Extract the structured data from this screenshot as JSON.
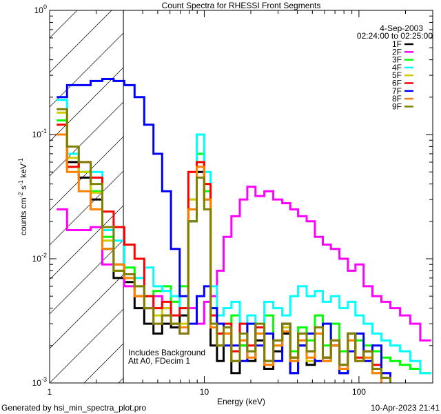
{
  "chart_data": {
    "type": "line",
    "title": "Count Spectra for RHESSI Front Segments",
    "xlabel": "Energy (keV)",
    "ylabel": "counts cm-2 s-1 keV-1",
    "xscale": "log",
    "yscale": "log",
    "xlim": [
      1,
      300
    ],
    "ylim": [
      0.001,
      1
    ],
    "x_tick_labels": [
      {
        "value": 1,
        "label": "1"
      },
      {
        "value": 10,
        "label": "10"
      },
      {
        "value": 100,
        "label": "100"
      }
    ],
    "y_tick_labels": [
      {
        "value": 1,
        "base": "10",
        "exp": "0"
      },
      {
        "value": 0.1,
        "base": "10",
        "exp": "-1"
      },
      {
        "value": 0.01,
        "base": "10",
        "exp": "-2"
      },
      {
        "value": 0.001,
        "base": "10",
        "exp": "-3"
      }
    ],
    "hatched_region_keV": [
      1,
      3
    ],
    "date": "4-Sep-2003",
    "time_range": "02:24:00 to 02:25:00",
    "annotations": [
      "Includes Background",
      "Att A0, FDecim 1"
    ],
    "legend_placement": "top-right",
    "x": [
      1.2,
      1.4,
      1.7,
      2.0,
      2.4,
      2.8,
      3.3,
      3.8,
      4.4,
      5.0,
      5.7,
      6.5,
      7.4,
      8.4,
      9.5,
      10.5,
      11.5,
      12.7,
      14,
      16,
      18,
      20,
      23,
      26,
      30,
      34,
      38,
      43,
      49,
      55,
      62,
      70,
      80,
      90,
      100,
      115,
      130,
      150,
      170,
      200,
      230,
      270
    ],
    "series": [
      {
        "name": "1F",
        "color": "#000000",
        "values": [
          0.1,
          0.06,
          0.045,
          0.03,
          0.012,
          0.007,
          0.0065,
          0.004,
          0.003,
          0.0025,
          0.003,
          0.0028,
          0.0035,
          0.02,
          0.05,
          0.03,
          0.002,
          0.0015,
          0.0025,
          0.0012,
          0.002,
          0.0015,
          0.0022,
          0.0013,
          0.0018,
          0.0025,
          0.0012,
          0.002,
          0.0014,
          0.0028,
          0.0016,
          0.002,
          0.0012,
          0.0025,
          0.0015,
          0.0018,
          0.0013,
          0.0011,
          null,
          null,
          null,
          null
        ]
      },
      {
        "name": "2F",
        "color": "#ff00ff",
        "values": [
          0.025,
          0.017,
          0.017,
          0.018,
          0.009,
          0.009,
          0.006,
          0.005,
          0.004,
          0.005,
          0.004,
          0.003,
          0.0025,
          0.004,
          0.003,
          0.0045,
          0.005,
          0.008,
          0.015,
          0.022,
          0.03,
          0.038,
          0.032,
          0.035,
          0.03,
          0.028,
          0.025,
          0.022,
          0.02,
          0.015,
          0.013,
          0.012,
          0.01,
          0.008,
          0.009,
          0.006,
          0.005,
          0.0045,
          0.004,
          0.0035,
          0.003,
          0.0022
        ]
      },
      {
        "name": "3F",
        "color": "#00ff00",
        "values": [
          0.13,
          0.055,
          0.05,
          0.035,
          0.015,
          0.009,
          0.0085,
          0.006,
          0.005,
          0.0055,
          0.006,
          0.0045,
          0.006,
          0.03,
          0.07,
          0.035,
          0.004,
          0.0025,
          0.003,
          0.0035,
          0.002,
          0.003,
          0.0025,
          0.0035,
          0.002,
          0.003,
          0.0018,
          0.0028,
          0.0022,
          0.0035,
          0.002,
          0.003,
          0.0018,
          0.0025,
          0.0022,
          0.002,
          0.0018,
          0.0016,
          0.0015,
          0.0014,
          0.0013,
          0.0012
        ]
      },
      {
        "name": "4F",
        "color": "#00ffff",
        "values": [
          0.19,
          0.07,
          0.05,
          0.05,
          0.017,
          0.014,
          0.0075,
          0.007,
          0.0085,
          0.006,
          0.0055,
          0.005,
          0.004,
          0.02,
          0.1,
          0.05,
          0.006,
          0.0035,
          0.004,
          0.0045,
          0.003,
          0.0035,
          0.003,
          0.0045,
          0.004,
          0.0035,
          0.005,
          0.006,
          0.005,
          0.0055,
          0.0045,
          0.005,
          0.004,
          0.0045,
          0.0035,
          0.003,
          0.0025,
          0.0022,
          0.002,
          0.0018,
          0.0015,
          0.0012
        ]
      },
      {
        "name": "5F",
        "color": "#cccc00",
        "values": [
          0.15,
          0.065,
          0.05,
          0.034,
          0.014,
          0.008,
          0.007,
          0.005,
          0.004,
          0.0035,
          0.004,
          0.003,
          0.003,
          0.03,
          0.06,
          0.03,
          0.003,
          0.002,
          0.0025,
          0.0015,
          0.0022,
          0.0018,
          0.0025,
          0.0014,
          0.002,
          0.0028,
          0.0016,
          0.0022,
          0.0015,
          0.0025,
          0.0015,
          0.002,
          0.0014,
          0.0022,
          0.0015,
          0.0016,
          0.0012,
          null,
          null,
          null,
          null,
          null
        ]
      },
      {
        "name": "6F",
        "color": "#ff0000",
        "values": [
          0.12,
          0.055,
          0.06,
          0.045,
          0.024,
          0.018,
          0.013,
          0.01,
          0.005,
          0.004,
          0.0045,
          0.0035,
          0.004,
          0.05,
          0.06,
          0.04,
          0.0035,
          0.0025,
          0.003,
          0.0018,
          0.003,
          0.002,
          0.0028,
          0.0015,
          0.0022,
          0.003,
          0.0016,
          0.0025,
          0.0018,
          0.0028,
          0.0016,
          0.0022,
          0.0014,
          0.0025,
          0.0016,
          0.0018,
          0.0014,
          0.0012,
          null,
          null,
          null,
          null
        ]
      },
      {
        "name": "7F",
        "color": "#0000ff",
        "values": [
          0.2,
          0.25,
          0.25,
          0.27,
          0.28,
          0.27,
          0.25,
          0.2,
          0.12,
          0.07,
          0.035,
          0.012,
          0.005,
          0.003,
          0.005,
          0.006,
          0.004,
          0.003,
          0.002,
          0.002,
          0.0015,
          0.003,
          0.002,
          0.0025,
          0.0015,
          0.003,
          0.0012,
          0.002,
          0.0025,
          0.0015,
          0.003,
          0.002,
          0.0012,
          0.0018,
          0.0025,
          0.0015,
          0.002,
          0.0012,
          null,
          null,
          null,
          null
        ]
      },
      {
        "name": "8F",
        "color": "#ff8000",
        "values": [
          0.1,
          0.05,
          0.035,
          0.025,
          0.012,
          0.009,
          0.007,
          0.005,
          0.004,
          0.003,
          0.0035,
          0.003,
          0.0028,
          0.025,
          0.055,
          0.03,
          0.0028,
          0.002,
          0.0025,
          0.0015,
          0.0022,
          0.0016,
          0.0025,
          0.0014,
          0.002,
          0.0026,
          0.0015,
          0.0022,
          0.0016,
          0.0025,
          0.0015,
          0.002,
          0.0013,
          0.0022,
          0.0015,
          0.0016,
          0.0012,
          null,
          null,
          null,
          null,
          null
        ]
      },
      {
        "name": "9F",
        "color": "#808000",
        "values": [
          0.16,
          0.08,
          0.06,
          0.04,
          0.018,
          0.008,
          0.0075,
          0.006,
          0.004,
          0.003,
          0.0035,
          0.003,
          0.0025,
          0.02,
          0.045,
          0.025,
          0.003,
          0.002,
          0.0028,
          0.0015,
          0.0025,
          0.0018,
          0.003,
          0.0015,
          0.0022,
          0.003,
          0.0016,
          0.0025,
          0.0018,
          0.0028,
          0.0016,
          0.0022,
          0.0014,
          0.0025,
          0.0015,
          0.0018,
          0.0013,
          0.0011,
          null,
          null,
          null,
          null
        ]
      }
    ]
  },
  "footer": {
    "generated_by": "Generated by hsi_min_spectra_plot.pro",
    "timestamp": "10-Apr-2023 21:41"
  }
}
